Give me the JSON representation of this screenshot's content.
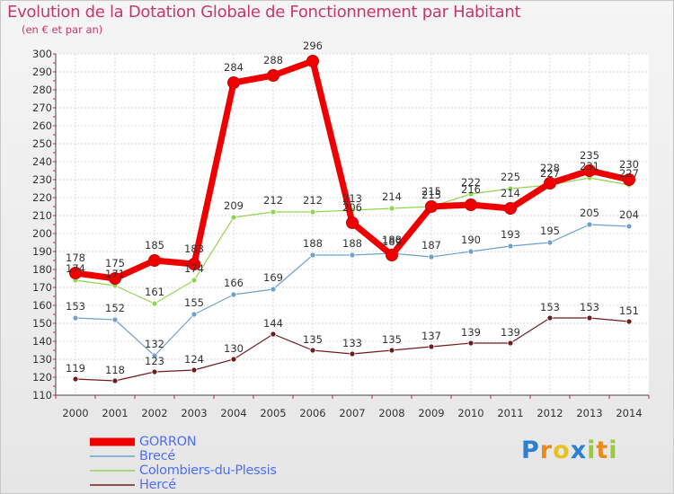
{
  "header": {
    "title": "Evolution de la Dotation Globale de Fonctionnement par Habitant",
    "subtitle": "(en € et par an)"
  },
  "chart_data": {
    "type": "line",
    "title": "Evolution de la Dotation Globale de Fonctionnement par Habitant",
    "subtitle": "(en € et par an)",
    "xlabel": "",
    "ylabel": "",
    "x": [
      "2000",
      "2001",
      "2002",
      "2003",
      "2004",
      "2005",
      "2006",
      "2007",
      "2008",
      "2009",
      "2010",
      "2011",
      "2012",
      "2013",
      "2014"
    ],
    "ylim": [
      110,
      300
    ],
    "y_ticks": [
      110,
      120,
      130,
      140,
      150,
      160,
      170,
      180,
      190,
      200,
      210,
      220,
      230,
      240,
      250,
      260,
      270,
      280,
      290,
      300
    ],
    "grid": true,
    "legend_position": "bottom-left",
    "series": [
      {
        "name": "Hercé",
        "color": "#6e1c1c",
        "values": [
          119,
          118,
          123,
          124,
          130,
          144,
          135,
          133,
          135,
          137,
          139,
          139,
          153,
          153,
          151
        ]
      },
      {
        "name": "Brecé",
        "color": "#6ea0d0",
        "values": [
          153,
          152,
          132,
          155,
          166,
          169,
          188,
          188,
          189,
          187,
          190,
          193,
          195,
          205,
          204
        ]
      },
      {
        "name": "Colombiers-du-Plessis",
        "color": "#8fd650",
        "values": [
          174,
          171,
          161,
          174,
          209,
          212,
          212,
          213,
          214,
          215,
          222,
          225,
          227,
          231,
          227
        ]
      },
      {
        "name": "GORRON",
        "color": "#ee0000",
        "values": [
          178,
          175,
          185,
          183,
          284,
          288,
          296,
          206,
          188,
          215,
          216,
          214,
          228,
          235,
          230
        ]
      }
    ]
  },
  "legend": {
    "items": [
      "GORRON",
      "Brecé",
      "Colombiers-du-Plessis",
      "Hercé"
    ]
  },
  "logo": {
    "letters": [
      "P",
      "r",
      "o",
      "x",
      "i",
      "t",
      "i"
    ]
  }
}
